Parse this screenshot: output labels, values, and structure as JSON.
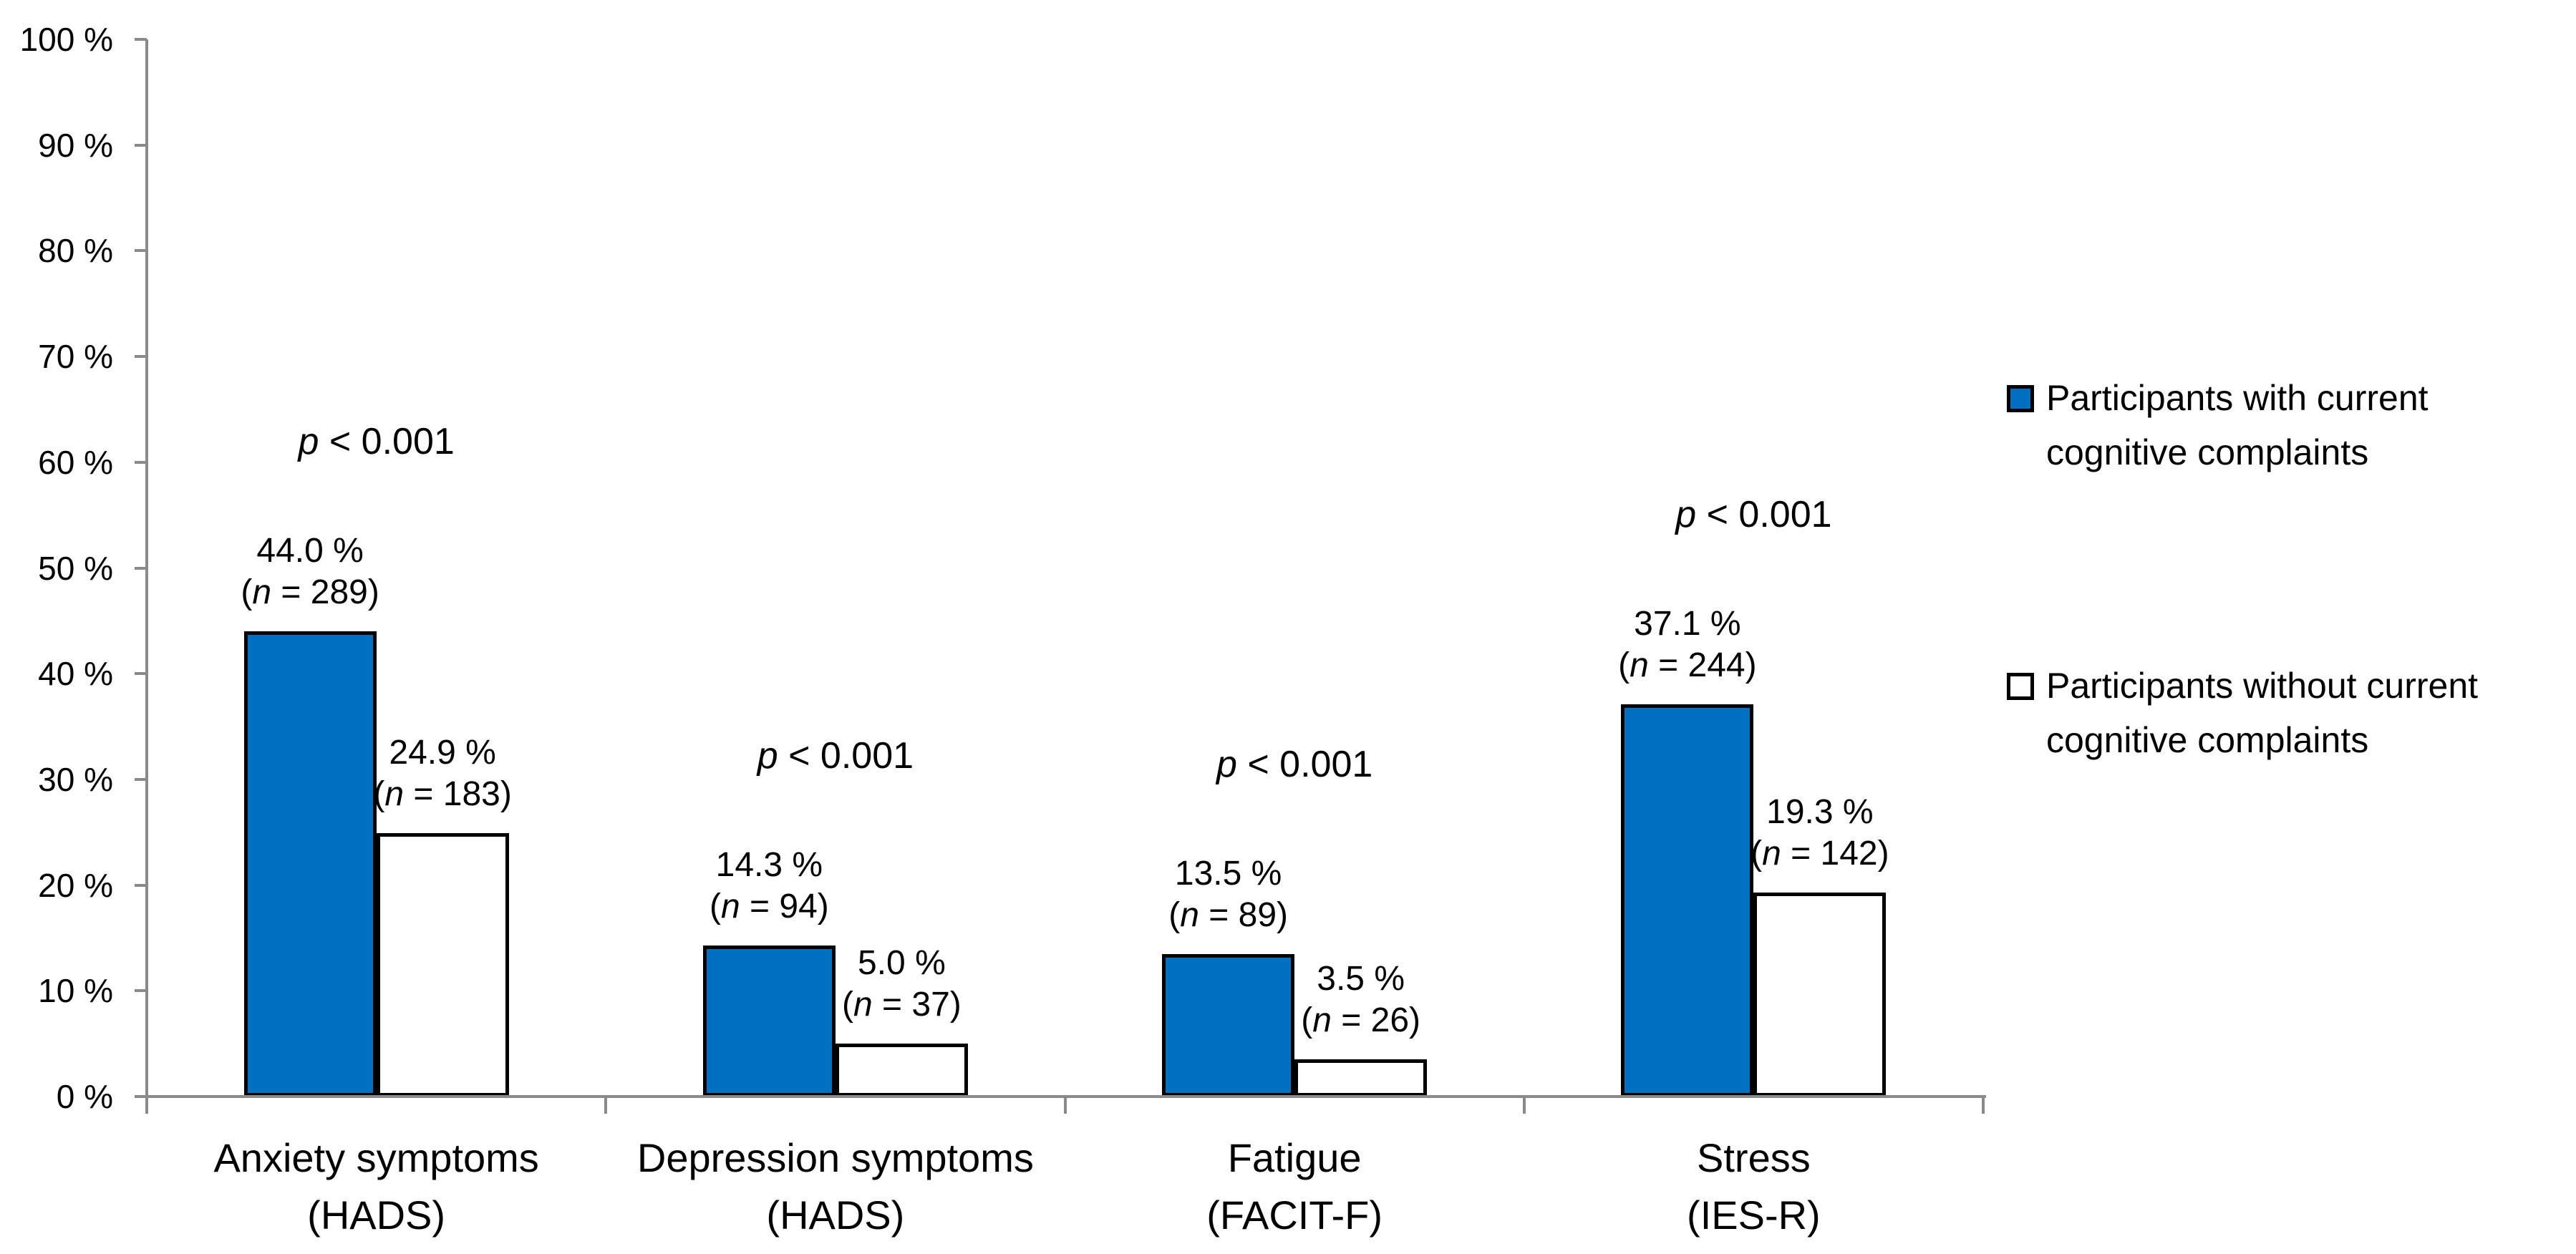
{
  "chart_data": {
    "type": "bar",
    "title": "",
    "xlabel": "",
    "ylabel": "",
    "y_axis": {
      "min": 0,
      "max": 100,
      "step": 10,
      "unit": "%",
      "grid": false,
      "tick_labels": [
        "0 %",
        "10 %",
        "20 %",
        "30 %",
        "40 %",
        "50 %",
        "60 %",
        "70 %",
        "80 %",
        "90 %",
        "100 %"
      ]
    },
    "legend_position": "right",
    "categories": [
      "Anxiety symptoms (HADS)",
      "Depression symptoms (HADS)",
      "Fatigue (FACIT-F)",
      "Stress (IES-R)"
    ],
    "series": [
      {
        "name": "Participants with current cognitive complaints",
        "color": "#0070C0",
        "values": [
          44.0,
          14.3,
          13.5,
          37.1
        ],
        "counts": [
          289,
          94,
          89,
          244
        ]
      },
      {
        "name": "Participants without current cognitive complaints",
        "color": "#FFFFFF",
        "values": [
          24.9,
          5.0,
          3.5,
          19.3
        ],
        "counts": [
          183,
          37,
          26,
          142
        ]
      }
    ],
    "groups": [
      {
        "category_line1": "Anxiety symptoms",
        "category_line2": "(HADS)",
        "p_label": "p < 0.001",
        "bars": [
          {
            "series": "with",
            "value": 44.0,
            "value_label": "44.0 %",
            "n_label": "(n = 289)"
          },
          {
            "series": "without",
            "value": 24.9,
            "value_label": "24.9 %",
            "n_label": "(n = 183)"
          }
        ]
      },
      {
        "category_line1": "Depression symptoms",
        "category_line2": "(HADS)",
        "p_label": "p < 0.001",
        "bars": [
          {
            "series": "with",
            "value": 14.3,
            "value_label": "14.3 %",
            "n_label": "(n = 94)"
          },
          {
            "series": "without",
            "value": 5.0,
            "value_label": "5.0 %",
            "n_label": "(n = 37)"
          }
        ]
      },
      {
        "category_line1": "Fatigue",
        "category_line2": "(FACIT-F)",
        "p_label": "p < 0.001",
        "bars": [
          {
            "series": "with",
            "value": 13.5,
            "value_label": "13.5 %",
            "n_label": "(n = 89)"
          },
          {
            "series": "without",
            "value": 3.5,
            "value_label": "3.5 %",
            "n_label": "(n = 26)"
          }
        ]
      },
      {
        "category_line1": "Stress",
        "category_line2": "(IES-R)",
        "p_label": "p < 0.001",
        "bars": [
          {
            "series": "with",
            "value": 37.1,
            "value_label": "37.1 %",
            "n_label": "(n = 244)"
          },
          {
            "series": "without",
            "value": 19.3,
            "value_label": "19.3 %",
            "n_label": "(n = 142)"
          }
        ]
      }
    ],
    "colors": {
      "bar_fill_with": "#0070C0",
      "bar_fill_without": "#FFFFFF",
      "bar_border": "#000000",
      "axis": "#8A8A8A",
      "text": "#000000"
    }
  },
  "legend": {
    "items": [
      {
        "swatch": "blue-filled-square",
        "label_line1": "Participants with current",
        "label_line2": "cognitive complaints"
      },
      {
        "swatch": "white-square",
        "label_line1": "Participants without current",
        "label_line2": "cognitive complaints"
      }
    ]
  }
}
